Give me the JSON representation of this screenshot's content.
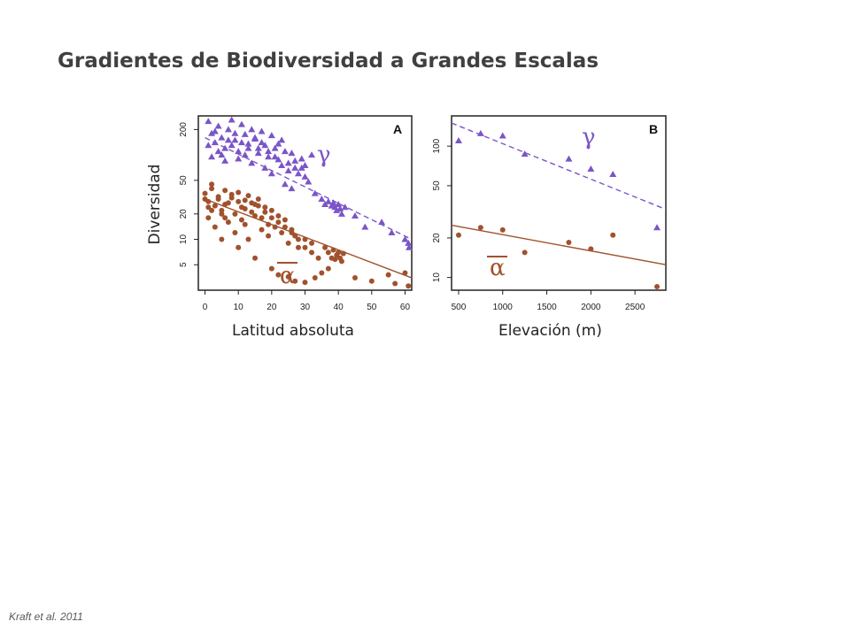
{
  "slide": {
    "title": "Gradientes de Biodiversidad a Grandes Escalas",
    "citation": "Kraft et al. 2011"
  },
  "colors": {
    "gamma": "#7b55c7",
    "alpha": "#a0522d",
    "axis": "#222222"
  },
  "chart_data": [
    {
      "type": "scatter",
      "panel_label": "A",
      "xlabel": "Latitud absoluta",
      "ylabel": "Diversidad",
      "xlim": [
        -2,
        62
      ],
      "ylim": [
        2.5,
        290
      ],
      "y_scale": "log",
      "x_ticks": [
        0,
        10,
        20,
        30,
        40,
        50,
        60
      ],
      "y_ticks": [
        5,
        10,
        20,
        50,
        200
      ],
      "series": [
        {
          "name": "γ",
          "marker": "triangle",
          "values": [
            [
              1,
              250
            ],
            [
              2,
              180
            ],
            [
              3,
              140
            ],
            [
              4,
              220
            ],
            [
              5,
              160
            ],
            [
              6,
              120
            ],
            [
              7,
              200
            ],
            [
              8,
              260
            ],
            [
              9,
              150
            ],
            [
              10,
              110
            ],
            [
              11,
              230
            ],
            [
              12,
              175
            ],
            [
              13,
              135
            ],
            [
              14,
              200
            ],
            [
              15,
              155
            ],
            [
              16,
              105
            ],
            [
              17,
              190
            ],
            [
              18,
              130
            ],
            [
              19,
              95
            ],
            [
              20,
              170
            ],
            [
              21,
              120
            ],
            [
              22,
              88
            ],
            [
              23,
              150
            ],
            [
              24,
              110
            ],
            [
              25,
              80
            ],
            [
              26,
              105
            ],
            [
              27,
              70
            ],
            [
              28,
              60
            ],
            [
              29,
              90
            ],
            [
              30,
              55
            ],
            [
              2,
              95
            ],
            [
              4,
              110
            ],
            [
              6,
              85
            ],
            [
              8,
              130
            ],
            [
              10,
              90
            ],
            [
              12,
              100
            ],
            [
              14,
              80
            ],
            [
              16,
              120
            ],
            [
              18,
              70
            ],
            [
              20,
              60
            ],
            [
              24,
              45
            ],
            [
              26,
              40
            ],
            [
              31,
              48
            ],
            [
              33,
              35
            ],
            [
              35,
              30
            ],
            [
              36,
              26
            ],
            [
              37,
              28
            ],
            [
              38,
              25
            ],
            [
              38.5,
              27
            ],
            [
              39,
              24
            ],
            [
              39.5,
              22
            ],
            [
              40,
              26
            ],
            [
              40.5,
              23
            ],
            [
              41,
              20
            ],
            [
              42,
              24
            ],
            [
              45,
              19
            ],
            [
              48,
              14
            ],
            [
              53,
              16
            ],
            [
              56,
              12
            ],
            [
              60,
              10
            ],
            [
              61,
              9
            ],
            [
              62,
              8
            ],
            [
              1,
              130
            ],
            [
              3,
              190
            ],
            [
              5,
              100
            ],
            [
              7,
              150
            ],
            [
              9,
              180
            ],
            [
              11,
              140
            ],
            [
              13,
              120
            ],
            [
              15,
              160
            ],
            [
              17,
              140
            ],
            [
              19,
              110
            ],
            [
              21,
              95
            ],
            [
              22,
              135
            ],
            [
              23,
              75
            ],
            [
              25,
              65
            ],
            [
              27,
              85
            ],
            [
              29,
              70
            ],
            [
              30,
              75
            ],
            [
              32,
              100
            ]
          ]
        },
        {
          "name": "α",
          "marker": "circle",
          "values": [
            [
              0,
              35
            ],
            [
              1,
              28
            ],
            [
              2,
              40
            ],
            [
              3,
              25
            ],
            [
              4,
              32
            ],
            [
              5,
              22
            ],
            [
              6,
              38
            ],
            [
              7,
              27
            ],
            [
              8,
              31
            ],
            [
              9,
              20
            ],
            [
              10,
              36
            ],
            [
              11,
              24
            ],
            [
              12,
              29
            ],
            [
              13,
              33
            ],
            [
              14,
              21
            ],
            [
              15,
              26
            ],
            [
              16,
              30
            ],
            [
              17,
              18
            ],
            [
              18,
              24
            ],
            [
              19,
              15
            ],
            [
              20,
              22
            ],
            [
              21,
              14
            ],
            [
              22,
              19
            ],
            [
              23,
              12
            ],
            [
              24,
              17
            ],
            [
              25,
              9
            ],
            [
              26,
              13
            ],
            [
              27,
              11
            ],
            [
              28,
              8
            ],
            [
              30,
              10
            ],
            [
              1,
              18
            ],
            [
              3,
              14
            ],
            [
              5,
              20
            ],
            [
              7,
              16
            ],
            [
              9,
              12
            ],
            [
              11,
              17
            ],
            [
              13,
              10
            ],
            [
              15,
              19
            ],
            [
              17,
              13
            ],
            [
              19,
              11
            ],
            [
              2,
              45
            ],
            [
              4,
              30
            ],
            [
              6,
              26
            ],
            [
              8,
              34
            ],
            [
              10,
              28
            ],
            [
              12,
              23
            ],
            [
              14,
              27
            ],
            [
              16,
              25
            ],
            [
              18,
              21
            ],
            [
              20,
              18
            ],
            [
              22,
              16
            ],
            [
              24,
              14
            ],
            [
              26,
              12
            ],
            [
              28,
              10
            ],
            [
              30,
              8
            ],
            [
              32,
              7
            ],
            [
              34,
              6
            ],
            [
              36,
              8
            ],
            [
              37,
              7
            ],
            [
              38,
              6
            ],
            [
              38.5,
              7.5
            ],
            [
              39,
              5.8
            ],
            [
              39.5,
              6.5
            ],
            [
              40,
              7
            ],
            [
              40.5,
              6
            ],
            [
              41,
              5.5
            ],
            [
              41.5,
              6.8
            ],
            [
              35,
              4
            ],
            [
              33,
              3.5
            ],
            [
              37,
              4.5
            ],
            [
              45,
              3.5
            ],
            [
              50,
              3.2
            ],
            [
              55,
              3.8
            ],
            [
              57,
              3
            ],
            [
              60,
              4
            ],
            [
              61,
              2.8
            ],
            [
              5,
              10
            ],
            [
              10,
              8
            ],
            [
              15,
              6
            ],
            [
              20,
              4.5
            ],
            [
              22,
              3.8
            ],
            [
              25,
              3.6
            ],
            [
              27,
              3.2
            ],
            [
              30,
              3.1
            ],
            [
              32,
              9
            ],
            [
              12,
              15
            ],
            [
              6,
              18
            ],
            [
              2,
              22
            ],
            [
              0,
              30
            ],
            [
              1,
              24
            ]
          ]
        }
      ],
      "trend": [
        {
          "series": "γ",
          "style": "dashed",
          "from": [
            0,
            160
          ],
          "to": [
            62,
            10
          ]
        },
        {
          "series": "α",
          "style": "solid",
          "from": [
            0,
            30
          ],
          "to": [
            62,
            3.5
          ]
        }
      ]
    },
    {
      "type": "scatter",
      "panel_label": "B",
      "xlabel": "Elevación (m)",
      "ylabel": "",
      "xlim": [
        420,
        2850
      ],
      "ylim": [
        8,
        170
      ],
      "y_scale": "log",
      "x_ticks": [
        500,
        1000,
        1500,
        2000,
        2500
      ],
      "y_ticks": [
        10,
        20,
        50,
        100
      ],
      "series": [
        {
          "name": "γ",
          "marker": "triangle",
          "values": [
            [
              500,
              110
            ],
            [
              750,
              125
            ],
            [
              1000,
              120
            ],
            [
              1250,
              87
            ],
            [
              1750,
              80
            ],
            [
              2000,
              67
            ],
            [
              2250,
              61
            ],
            [
              2750,
              24
            ]
          ]
        },
        {
          "name": "α",
          "marker": "circle",
          "values": [
            [
              500,
              21
            ],
            [
              750,
              24
            ],
            [
              1000,
              23
            ],
            [
              1250,
              15.5
            ],
            [
              1750,
              18.5
            ],
            [
              2000,
              16.5
            ],
            [
              2250,
              21
            ],
            [
              2750,
              8.5
            ]
          ]
        }
      ],
      "trend": [
        {
          "series": "γ",
          "style": "dashed",
          "from": [
            420,
            150
          ],
          "to": [
            2850,
            33
          ]
        },
        {
          "series": "α",
          "style": "solid",
          "from": [
            420,
            25
          ],
          "to": [
            2850,
            12.5
          ]
        }
      ]
    }
  ]
}
